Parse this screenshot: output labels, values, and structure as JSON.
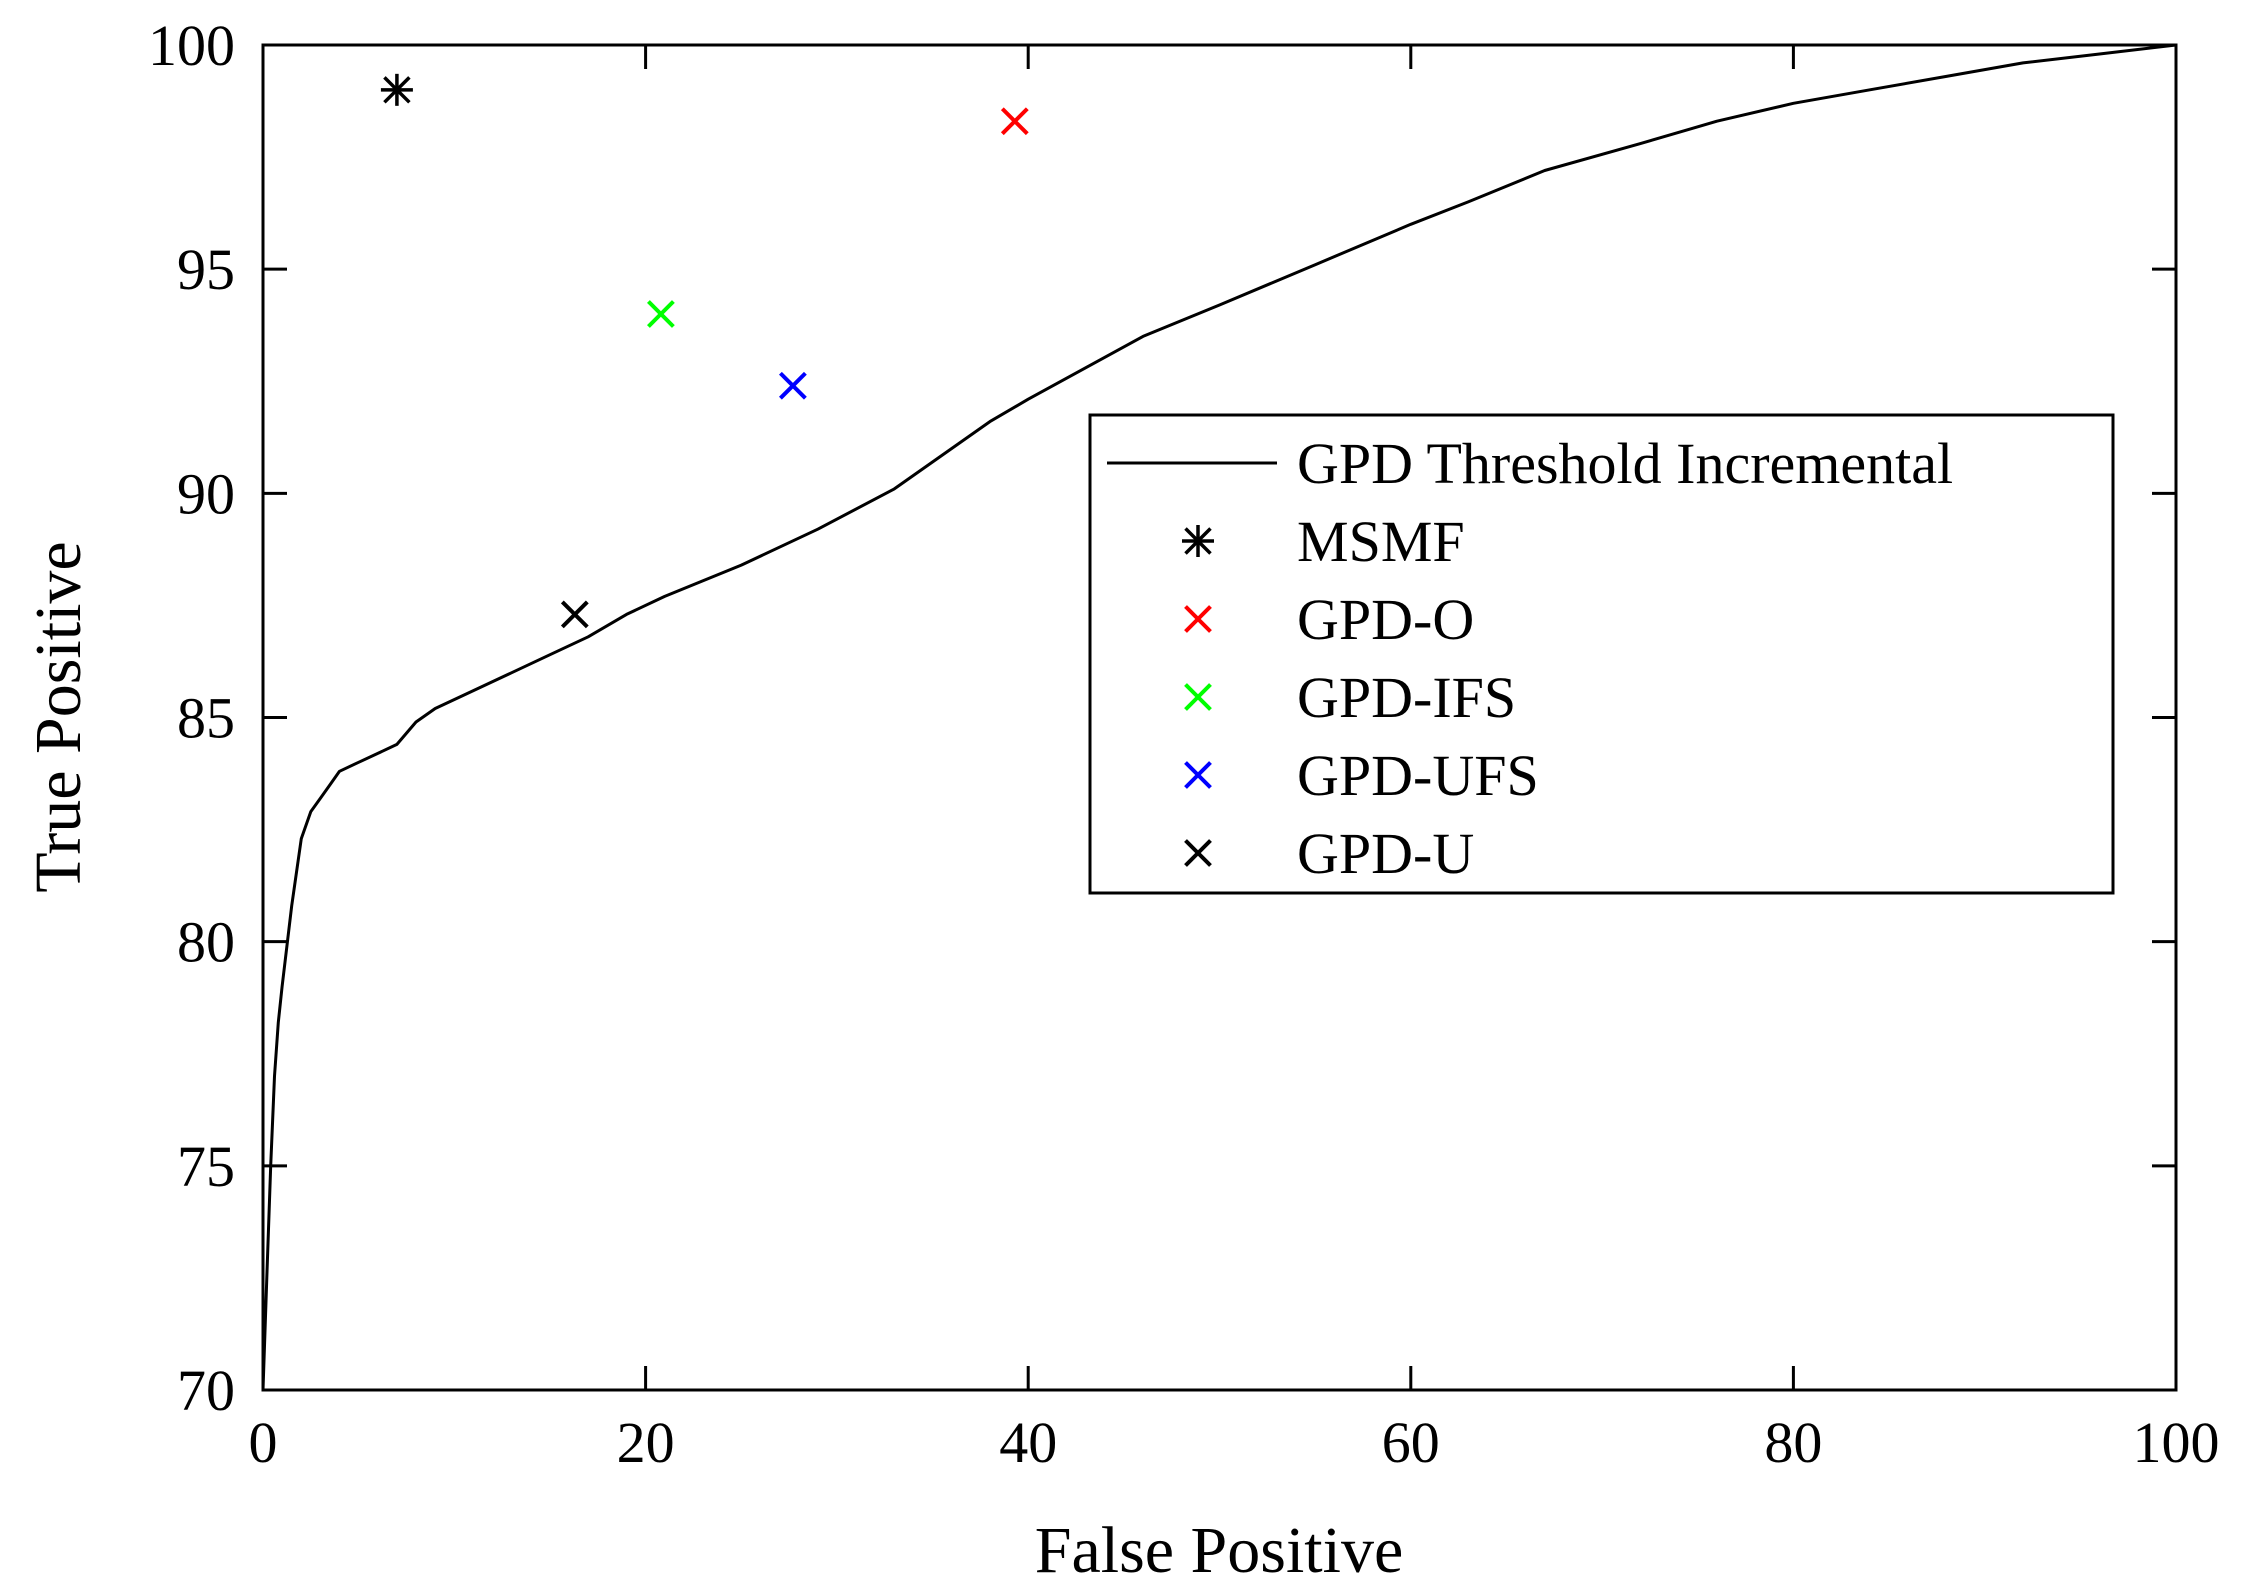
{
  "chart_data": {
    "type": "line",
    "title": "",
    "xlabel": "False Positive",
    "ylabel": "True Positive",
    "xlim": [
      0,
      100
    ],
    "ylim": [
      70,
      100
    ],
    "xticks": [
      0,
      20,
      40,
      60,
      80,
      100
    ],
    "yticks": [
      70,
      75,
      80,
      85,
      90,
      95,
      100
    ],
    "grid": false,
    "legend_position": "center-right",
    "series": [
      {
        "name": "GPD Threshold Incremental",
        "kind": "line",
        "color": "#000000",
        "x": [
          0,
          0.2,
          0.4,
          0.6,
          0.8,
          1.0,
          1.5,
          2.0,
          2.5,
          3.0,
          3.5,
          4.0,
          5.0,
          6.0,
          7.0,
          8.0,
          9.0,
          11.0,
          13.0,
          15.0,
          17.0,
          19.0,
          21.0,
          25.0,
          29.0,
          33.0,
          36.0,
          38.0,
          40.0,
          43.0,
          46.0,
          50.0,
          55.0,
          60.0,
          63.0,
          67.0,
          72.0,
          76.0,
          80.0,
          84.0,
          88.0,
          92.0,
          96.0,
          100.0
        ],
        "y": [
          70.0,
          72.5,
          75.0,
          77.0,
          78.2,
          79.0,
          80.8,
          82.3,
          82.9,
          83.2,
          83.5,
          83.8,
          84.0,
          84.2,
          84.4,
          84.9,
          85.2,
          85.6,
          86.0,
          86.4,
          86.8,
          87.3,
          87.7,
          88.4,
          89.2,
          90.1,
          91.0,
          91.6,
          92.1,
          92.8,
          93.5,
          94.2,
          95.1,
          96.0,
          96.5,
          97.2,
          97.8,
          98.3,
          98.7,
          99.0,
          99.3,
          99.6,
          99.8,
          100.0
        ]
      },
      {
        "name": "MSMF",
        "kind": "marker",
        "marker": "asterisk",
        "color": "#000000",
        "x": [
          7.0
        ],
        "y": [
          99.0
        ]
      },
      {
        "name": "GPD-O",
        "kind": "marker",
        "marker": "x",
        "color": "#ff0000",
        "x": [
          39.3
        ],
        "y": [
          98.3
        ]
      },
      {
        "name": "GPD-IFS",
        "kind": "marker",
        "marker": "x",
        "color": "#00ff00",
        "x": [
          20.8
        ],
        "y": [
          94.0
        ]
      },
      {
        "name": "GPD-UFS",
        "kind": "marker",
        "marker": "x",
        "color": "#0000ff",
        "x": [
          27.7
        ],
        "y": [
          92.4
        ]
      },
      {
        "name": "GPD-U",
        "kind": "marker",
        "marker": "x",
        "color": "#000000",
        "x": [
          16.3
        ],
        "y": [
          87.3
        ]
      }
    ]
  }
}
